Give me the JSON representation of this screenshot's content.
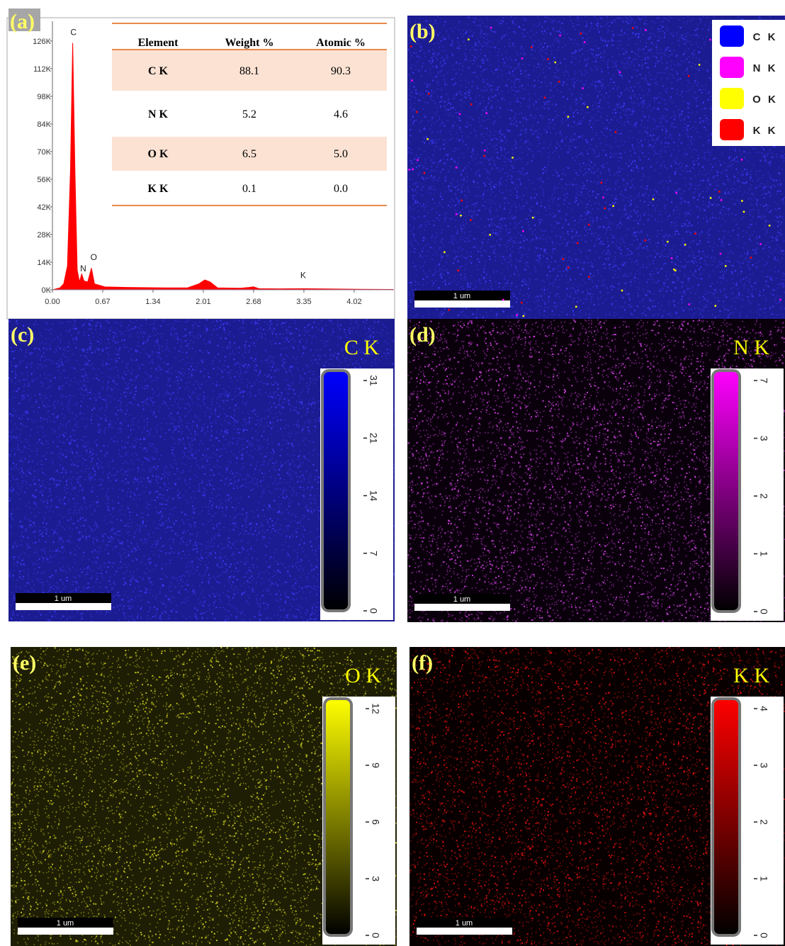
{
  "chart_data": [
    {
      "type": "area",
      "panel_label": "(a)",
      "color": "#ff0000",
      "x": [
        0,
        0.1,
        0.15,
        0.2,
        0.24,
        0.27,
        0.3,
        0.33,
        0.36,
        0.39,
        0.42,
        0.47,
        0.52,
        0.56,
        0.7,
        1.0,
        1.5,
        1.8,
        1.95,
        2.03,
        2.1,
        2.2,
        2.5,
        2.62,
        2.68,
        2.75,
        3.0,
        3.35,
        4.0,
        4.54
      ],
      "values": [
        0,
        1000,
        3000,
        12000,
        60000,
        125000,
        60000,
        10000,
        4000,
        8000,
        4500,
        4000,
        11000,
        3000,
        1500,
        1200,
        1000,
        1000,
        3000,
        5000,
        4000,
        1000,
        800,
        1200,
        1500,
        600,
        500,
        600,
        300,
        200
      ],
      "xlim": [
        0,
        4.54
      ],
      "xticks": [
        {
          "value": 0,
          "label": "0.00"
        },
        0.67,
        1.34,
        2.01,
        2.68,
        3.35,
        4.02
      ],
      "ylim": [
        0,
        136000
      ],
      "yticks": [
        {
          "value": 0,
          "label": "0K"
        },
        {
          "value": 14000,
          "label": "14K"
        },
        {
          "value": 28000,
          "label": "28K"
        },
        {
          "value": 42000,
          "label": "42K"
        },
        {
          "value": 56000,
          "label": "56K"
        },
        {
          "value": 70000,
          "label": "70K"
        },
        {
          "value": 84000,
          "label": "84K"
        },
        {
          "value": 98000,
          "label": "98K"
        },
        {
          "value": 112000,
          "label": "112K"
        },
        {
          "value": 126000,
          "label": "126K"
        }
      ],
      "annotations": [
        {
          "text": "C",
          "x": 0.28,
          "y": 129000
        },
        {
          "text": "N",
          "x": 0.41,
          "y": 9300
        },
        {
          "text": "O",
          "x": 0.55,
          "y": 15000
        },
        {
          "text": "K",
          "x": 3.34,
          "y": 6000
        }
      ],
      "table": {
        "columns": [
          "Element",
          "Weight %",
          "Atomic %"
        ],
        "rows": [
          [
            "C  K",
            "88.1",
            "90.3"
          ],
          [
            "N  K",
            "5.2",
            "4.6"
          ],
          [
            "O  K",
            "6.5",
            "5.0"
          ],
          [
            "K  K",
            "0.1",
            "0.0"
          ]
        ]
      }
    },
    {
      "type": "map",
      "panel_label": "(b)",
      "background": "#1c1c92",
      "dot_color": "#3c3cff",
      "scale_bar": "1 um",
      "legend": [
        {
          "name": "C K",
          "color": "#0000ff"
        },
        {
          "name": "N K",
          "color": "#ff00ff"
        },
        {
          "name": "O K",
          "color": "#ffff00"
        },
        {
          "name": "K K",
          "color": "#ff0000"
        }
      ]
    },
    {
      "type": "map",
      "panel_label": "(c)",
      "element": "C K",
      "background": "#1c1c92",
      "dot_color": "#3c3cff",
      "scale_bar": "1 um",
      "colorbar": {
        "color": "#0000ff",
        "labels": [
          "0",
          "7",
          "14",
          "21",
          "31"
        ]
      }
    },
    {
      "type": "map",
      "panel_label": "(d)",
      "element": "N K",
      "background": "#0a000c",
      "dot_color": "#d040e0",
      "scale_bar": "1 um",
      "colorbar": {
        "color": "#ff00ff",
        "labels": [
          "0",
          "1",
          "2",
          "3",
          "7"
        ]
      }
    },
    {
      "type": "map",
      "panel_label": "(e)",
      "element": "O K",
      "background": "#1e1e04",
      "dot_color": "#c8c820",
      "scale_bar": "1 um",
      "colorbar": {
        "color": "#ffff00",
        "labels": [
          "0",
          "3",
          "6",
          "9",
          "12"
        ]
      }
    },
    {
      "type": "map",
      "panel_label": "(f)",
      "element": "K K",
      "background": "#080000",
      "dot_color": "#e01010",
      "scale_bar": "1 um",
      "colorbar": {
        "color": "#ff0000",
        "labels": [
          "0",
          "1",
          "2",
          "3",
          "4"
        ]
      }
    }
  ]
}
